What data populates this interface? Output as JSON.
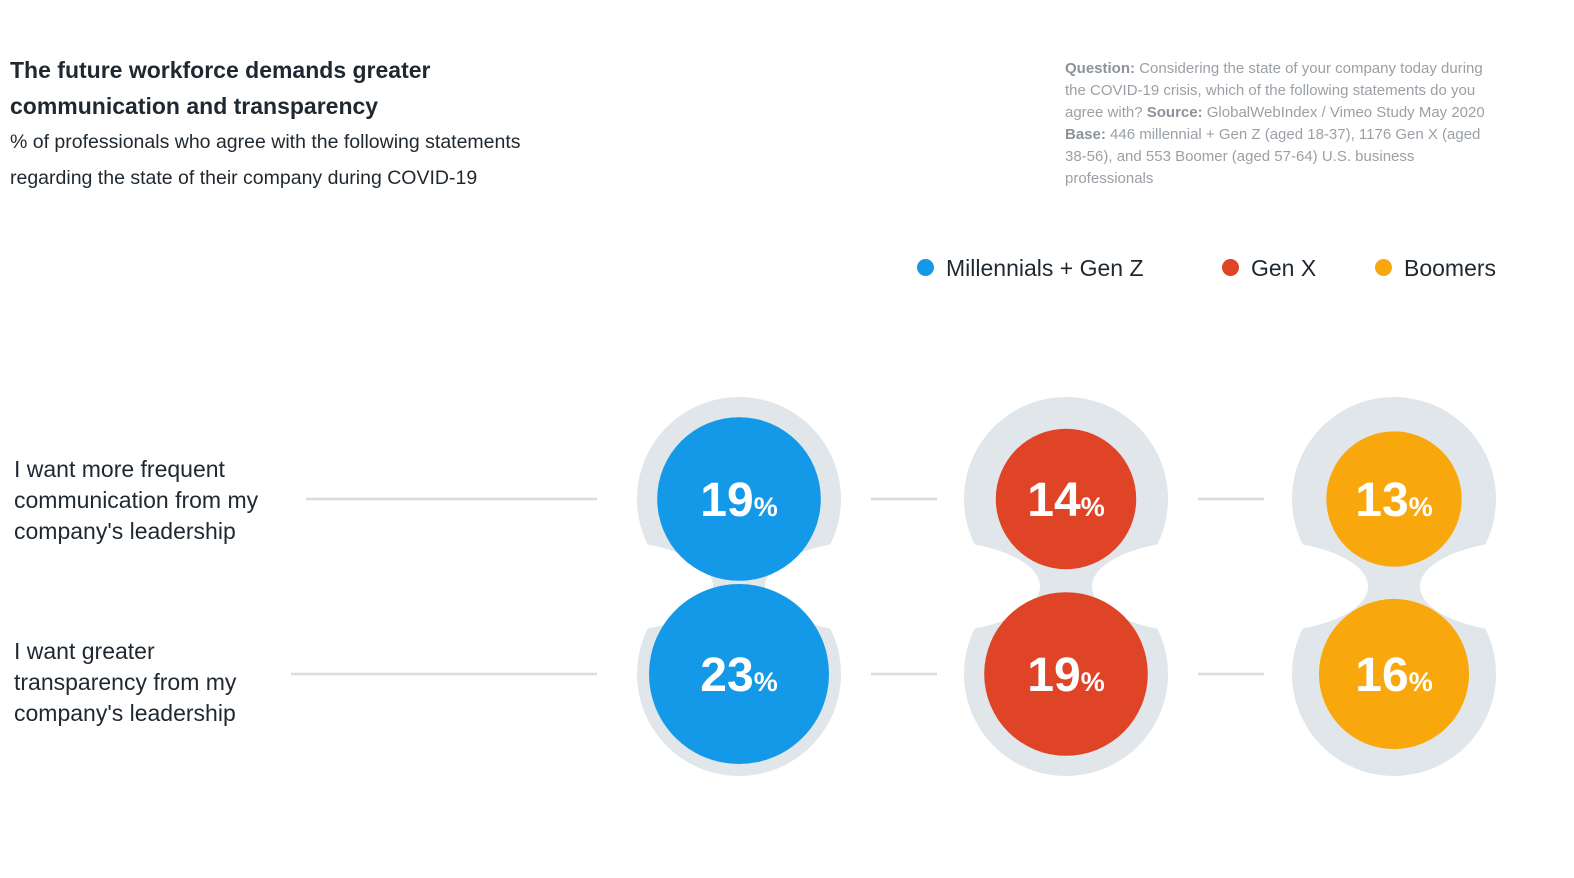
{
  "header": {
    "title_line1": "The future workforce demands greater",
    "title_line2": "communication and transparency",
    "subtitle_line1": "% of professionals who agree with the following statements",
    "subtitle_line2": "regarding the state of their company during COVID-19"
  },
  "note": {
    "question_label": "Question:",
    "question_text": "Considering the state of your company today during the COVID-19 crisis, which of the following statements do you agree with?",
    "source_label": "Source:",
    "source_text": "GlobalWebIndex / Vimeo Study May 2020",
    "base_label": "Base:",
    "base_text": "446 millennial + Gen Z (aged 18-37), 1176 Gen X (aged 38-56), and 553 Boomer (aged 57-64) U.S. business professionals"
  },
  "chart_data": {
    "type": "bubble",
    "unit": "%",
    "legend_position": "top-right",
    "categories": [
      "I want more frequent communication from my company's leadership",
      "I want greater transparency from my company's leadership"
    ],
    "category_lines": [
      [
        "I want more frequent",
        "communication from my",
        "company's leadership"
      ],
      [
        "I want greater",
        "transparency from my",
        "company's leadership"
      ]
    ],
    "series": [
      {
        "name": "Millennials + Gen Z",
        "color": "#1499e8",
        "values": [
          19,
          23
        ]
      },
      {
        "name": "Gen X",
        "color": "#e04426",
        "values": [
          14,
          19
        ]
      },
      {
        "name": "Boomers",
        "color": "#f8a80d",
        "values": [
          13,
          16
        ]
      }
    ],
    "track_color": "#e1e6ea",
    "connector_color": "#d7dde2"
  }
}
